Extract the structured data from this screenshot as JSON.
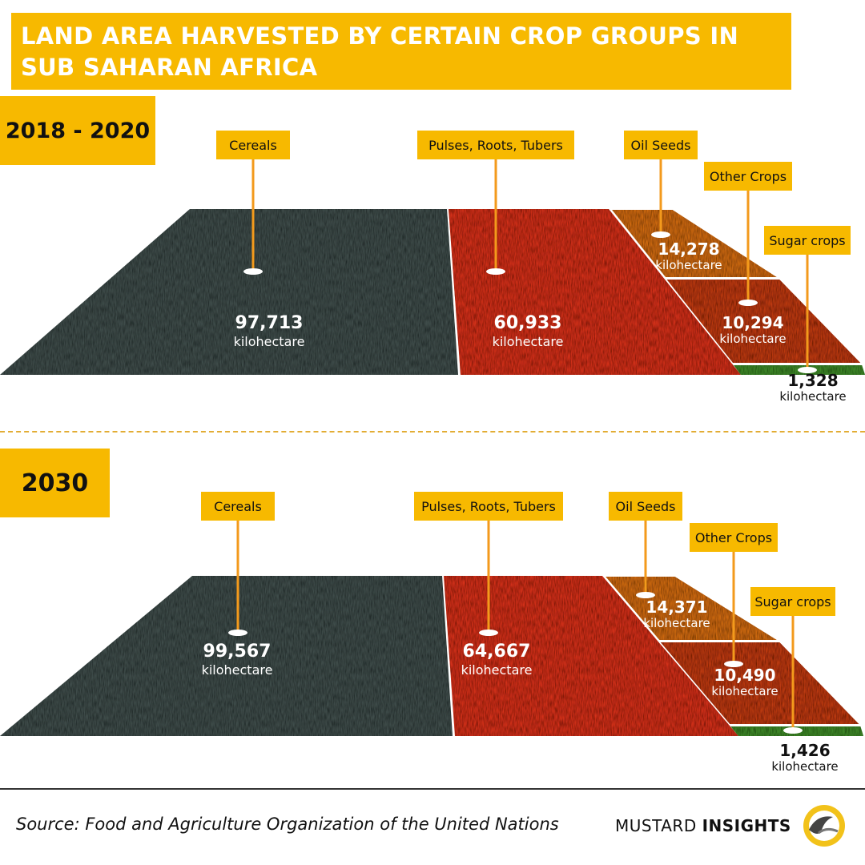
{
  "title": "LAND AREA HARVESTED BY CERTAIN CROP GROUPS IN SUB SAHARAN AFRICA",
  "unit": "kilohectare",
  "panels": [
    {
      "period": "2018 - 2020"
    },
    {
      "period": "2030"
    }
  ],
  "chart_data": [
    {
      "type": "bar",
      "title": "2018 - 2020",
      "categories": [
        "Cereals",
        "Pulses, Roots, Tubers",
        "Oil Seeds",
        "Other Crops",
        "Sugar crops"
      ],
      "values": [
        97713,
        60933,
        14278,
        10294,
        1328
      ],
      "value_labels": [
        "97,713",
        "60,933",
        "14,278",
        "10,294",
        "1,328"
      ],
      "unit": "kilohectare"
    },
    {
      "type": "bar",
      "title": "2030",
      "categories": [
        "Cereals",
        "Pulses, Roots, Tubers",
        "Oil Seeds",
        "Other Crops",
        "Sugar crops"
      ],
      "values": [
        99567,
        64667,
        14371,
        10490,
        1426
      ],
      "value_labels": [
        "99,567",
        "64,667",
        "14,371",
        "10,490",
        "1,426"
      ],
      "unit": "kilohectare"
    }
  ],
  "colors": {
    "accent": "#f7b900",
    "cereals": "#3f4e4c",
    "pulses": "#d2311a",
    "oilseeds": "#cf6a14",
    "other": "#bd3a16",
    "sugar": "#3f8a2a",
    "pin": "#f39a1c"
  },
  "footer": {
    "source": "Source: Food and Agriculture Organization of the United Nations",
    "brand_light": "MUSTARD",
    "brand_bold": "INSIGHTS"
  }
}
